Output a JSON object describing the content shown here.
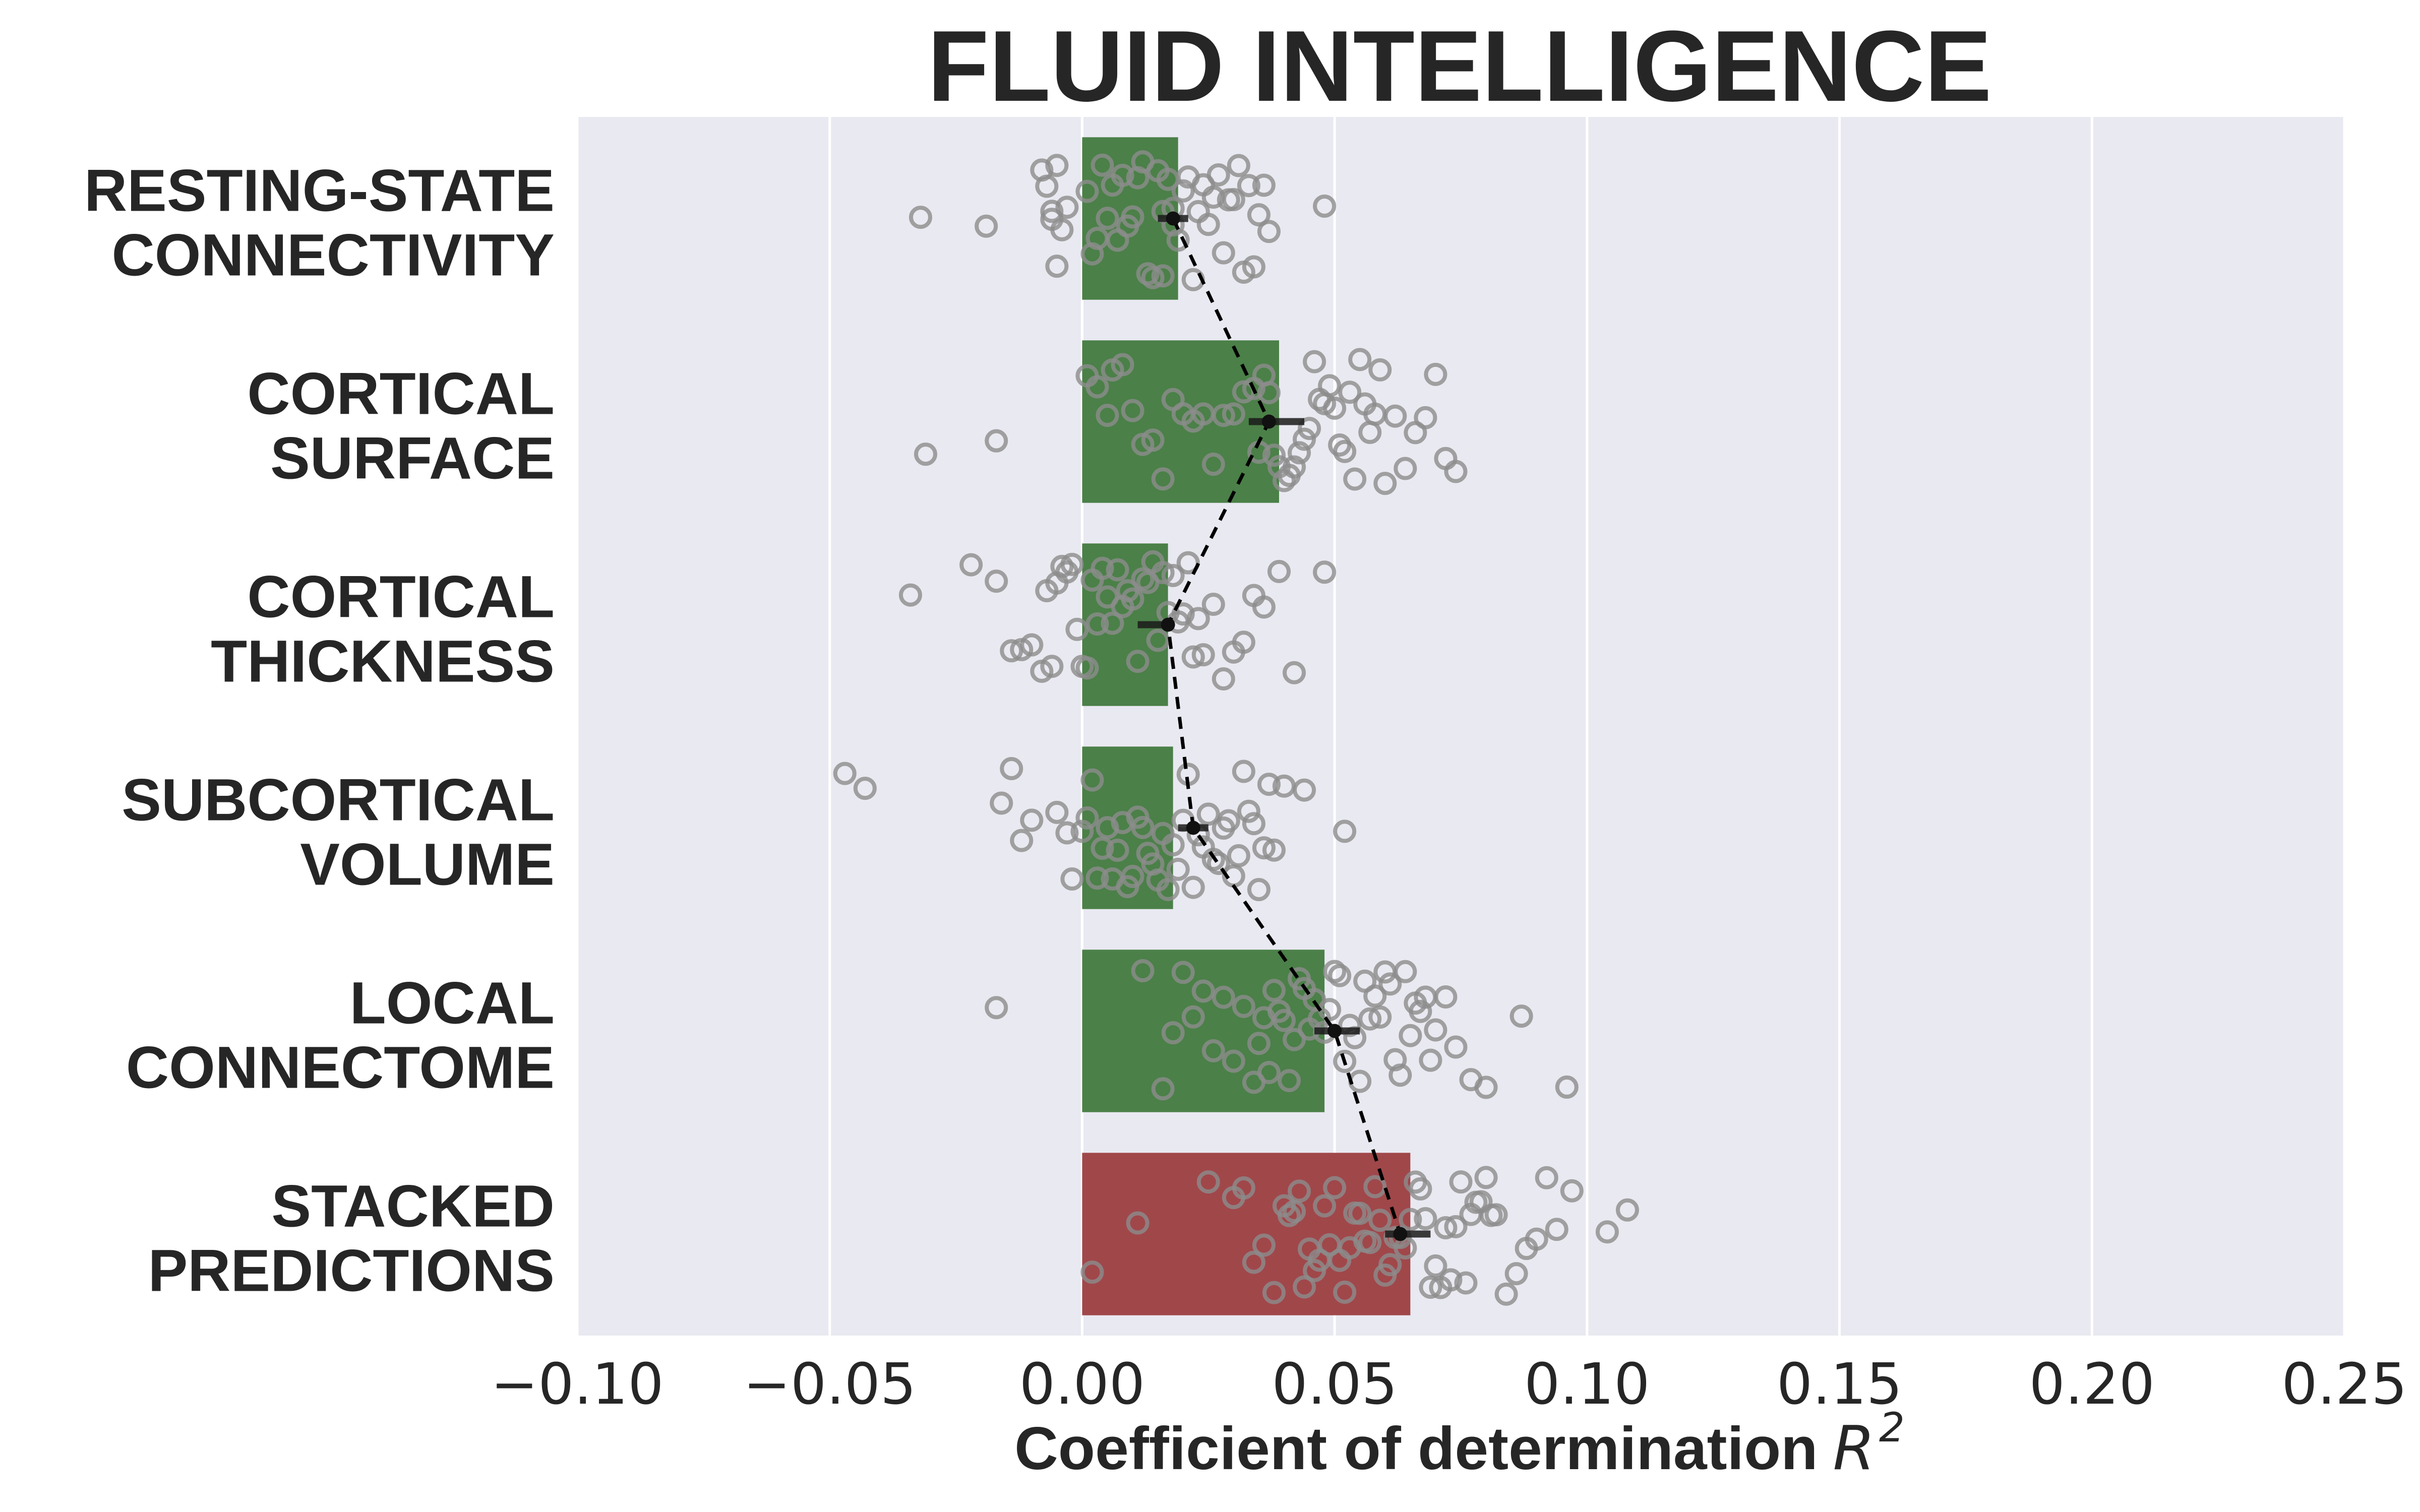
{
  "chart_data": {
    "type": "bar",
    "orientation": "horizontal",
    "title": "FLUID INTELLIGENCE",
    "xlabel": "Coefficient of determination",
    "xlabel_symbol": "R",
    "xlabel_superscript": "2",
    "xlim": [
      -0.1,
      0.25
    ],
    "xticks": [
      -0.1,
      -0.05,
      0.0,
      0.05,
      0.1,
      0.15,
      0.2,
      0.25
    ],
    "xtick_labels": [
      "−0.10",
      "−0.05",
      "0.00",
      "0.05",
      "0.10",
      "0.15",
      "0.20",
      "0.25"
    ],
    "grid": "vertical",
    "background": "#e9e9f1",
    "colors": {
      "bar": "#4b8048",
      "bar_highlight": "#a0474a",
      "points": "#8c8c8c",
      "line": "#000000"
    },
    "categories": [
      [
        "RESTING-STATE",
        "CONNECTIVITY"
      ],
      [
        "CORTICAL",
        "SURFACE"
      ],
      [
        "CORTICAL",
        "THICKNESS"
      ],
      [
        "SUBCORTICAL",
        "VOLUME"
      ],
      [
        "LOCAL",
        "CONNECTOME"
      ],
      [
        "STACKED",
        "PREDICTIONS"
      ]
    ],
    "values": [
      0.019,
      0.039,
      0.017,
      0.018,
      0.048,
      0.065
    ],
    "highlight_index": 5,
    "median_line": [
      0.018,
      0.037,
      0.017,
      0.022,
      0.05,
      0.063
    ],
    "interval_low": [
      0.015,
      0.033,
      0.011,
      0.019,
      0.046,
      0.06
    ],
    "interval_high": [
      0.021,
      0.044,
      0.016,
      0.025,
      0.055,
      0.069
    ],
    "points": [
      [
        -0.032,
        -0.019,
        -0.008,
        -0.007,
        -0.006,
        -0.006,
        -0.005,
        -0.005,
        -0.004,
        -0.003,
        0.001,
        0.002,
        0.003,
        0.004,
        0.005,
        0.006,
        0.007,
        0.008,
        0.009,
        0.01,
        0.011,
        0.012,
        0.013,
        0.014,
        0.015,
        0.016,
        0.016,
        0.017,
        0.018,
        0.018,
        0.019,
        0.02,
        0.021,
        0.022,
        0.023,
        0.024,
        0.025,
        0.026,
        0.027,
        0.028,
        0.029,
        0.03,
        0.031,
        0.032,
        0.033,
        0.034,
        0.035,
        0.036,
        0.037,
        0.048
      ],
      [
        -0.031,
        -0.017,
        0.001,
        0.003,
        0.005,
        0.006,
        0.008,
        0.01,
        0.012,
        0.014,
        0.016,
        0.018,
        0.02,
        0.022,
        0.024,
        0.026,
        0.028,
        0.03,
        0.032,
        0.034,
        0.035,
        0.036,
        0.037,
        0.038,
        0.039,
        0.04,
        0.041,
        0.042,
        0.043,
        0.044,
        0.045,
        0.046,
        0.047,
        0.048,
        0.049,
        0.05,
        0.051,
        0.052,
        0.053,
        0.054,
        0.055,
        0.056,
        0.057,
        0.058,
        0.059,
        0.06,
        0.062,
        0.064,
        0.066,
        0.068,
        0.07,
        0.072,
        0.074
      ],
      [
        -0.034,
        -0.022,
        -0.017,
        -0.014,
        -0.012,
        -0.01,
        -0.008,
        -0.007,
        -0.006,
        -0.005,
        -0.004,
        -0.003,
        -0.002,
        -0.001,
        0.0,
        0.001,
        0.002,
        0.003,
        0.004,
        0.005,
        0.006,
        0.007,
        0.008,
        0.009,
        0.01,
        0.011,
        0.012,
        0.013,
        0.014,
        0.015,
        0.016,
        0.017,
        0.018,
        0.019,
        0.02,
        0.021,
        0.022,
        0.023,
        0.024,
        0.026,
        0.028,
        0.03,
        0.032,
        0.034,
        0.036,
        0.039,
        0.042,
        0.048
      ],
      [
        -0.047,
        -0.043,
        -0.016,
        -0.014,
        -0.012,
        -0.01,
        -0.005,
        -0.003,
        -0.002,
        0.0,
        0.001,
        0.002,
        0.003,
        0.004,
        0.005,
        0.006,
        0.007,
        0.008,
        0.009,
        0.01,
        0.011,
        0.012,
        0.013,
        0.014,
        0.015,
        0.016,
        0.017,
        0.018,
        0.019,
        0.02,
        0.021,
        0.022,
        0.023,
        0.024,
        0.025,
        0.026,
        0.027,
        0.028,
        0.029,
        0.03,
        0.031,
        0.032,
        0.033,
        0.034,
        0.035,
        0.036,
        0.037,
        0.038,
        0.04,
        0.044,
        0.052
      ],
      [
        -0.017,
        0.012,
        0.016,
        0.018,
        0.02,
        0.022,
        0.024,
        0.026,
        0.028,
        0.03,
        0.032,
        0.034,
        0.035,
        0.036,
        0.037,
        0.038,
        0.039,
        0.04,
        0.041,
        0.042,
        0.043,
        0.044,
        0.045,
        0.046,
        0.047,
        0.048,
        0.049,
        0.05,
        0.051,
        0.052,
        0.053,
        0.054,
        0.055,
        0.056,
        0.057,
        0.058,
        0.059,
        0.06,
        0.061,
        0.062,
        0.063,
        0.064,
        0.065,
        0.066,
        0.067,
        0.068,
        0.069,
        0.07,
        0.072,
        0.074,
        0.077,
        0.08,
        0.087,
        0.096
      ],
      [
        0.002,
        0.011,
        0.025,
        0.03,
        0.032,
        0.034,
        0.036,
        0.038,
        0.04,
        0.041,
        0.042,
        0.043,
        0.044,
        0.045,
        0.046,
        0.047,
        0.048,
        0.049,
        0.05,
        0.051,
        0.052,
        0.053,
        0.054,
        0.055,
        0.056,
        0.057,
        0.058,
        0.059,
        0.06,
        0.061,
        0.062,
        0.063,
        0.064,
        0.065,
        0.066,
        0.067,
        0.068,
        0.069,
        0.07,
        0.071,
        0.072,
        0.073,
        0.074,
        0.075,
        0.076,
        0.077,
        0.078,
        0.079,
        0.08,
        0.081,
        0.082,
        0.084,
        0.086,
        0.088,
        0.09,
        0.092,
        0.094,
        0.097,
        0.104,
        0.108
      ]
    ]
  }
}
